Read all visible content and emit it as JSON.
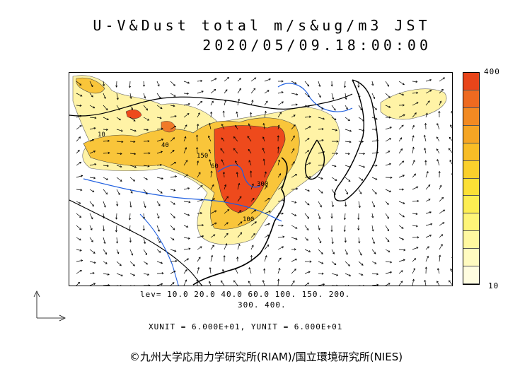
{
  "title_line1": "U-V&Dust total m/s&ug/m3 JST",
  "title_line2": "2020/05/09.18:00:00",
  "legend": {
    "max_label": "400",
    "min_label": "10",
    "levels_line1": "lev= 10.0 20.0 40.0 60.0 100. 150. 200.",
    "levels_line2": "300. 400.",
    "colors": [
      "#e8451a",
      "#ee6a20",
      "#f28a22",
      "#f5a524",
      "#f8bd26",
      "#fad02c",
      "#fce036",
      "#fdee52",
      "#fef578",
      "#fff8a0",
      "#fffbc0",
      "#fffde0"
    ]
  },
  "unit_text": "XUNIT = 6.000E+01, YUNIT = 6.000E+01",
  "credit": "©九州大学応用力学研究所(RIAM)/国立環境研究所(NIES)",
  "map": {
    "land_line_color": "#000000",
    "river_color": "#1f5fe0",
    "high_dust_color": "#ee4a1c",
    "mid_dust_color": "#f9c53a",
    "low_dust_color": "#fff3a6",
    "contour_labels": [
      "40",
      "150",
      "60",
      "10",
      "100",
      "300"
    ]
  }
}
